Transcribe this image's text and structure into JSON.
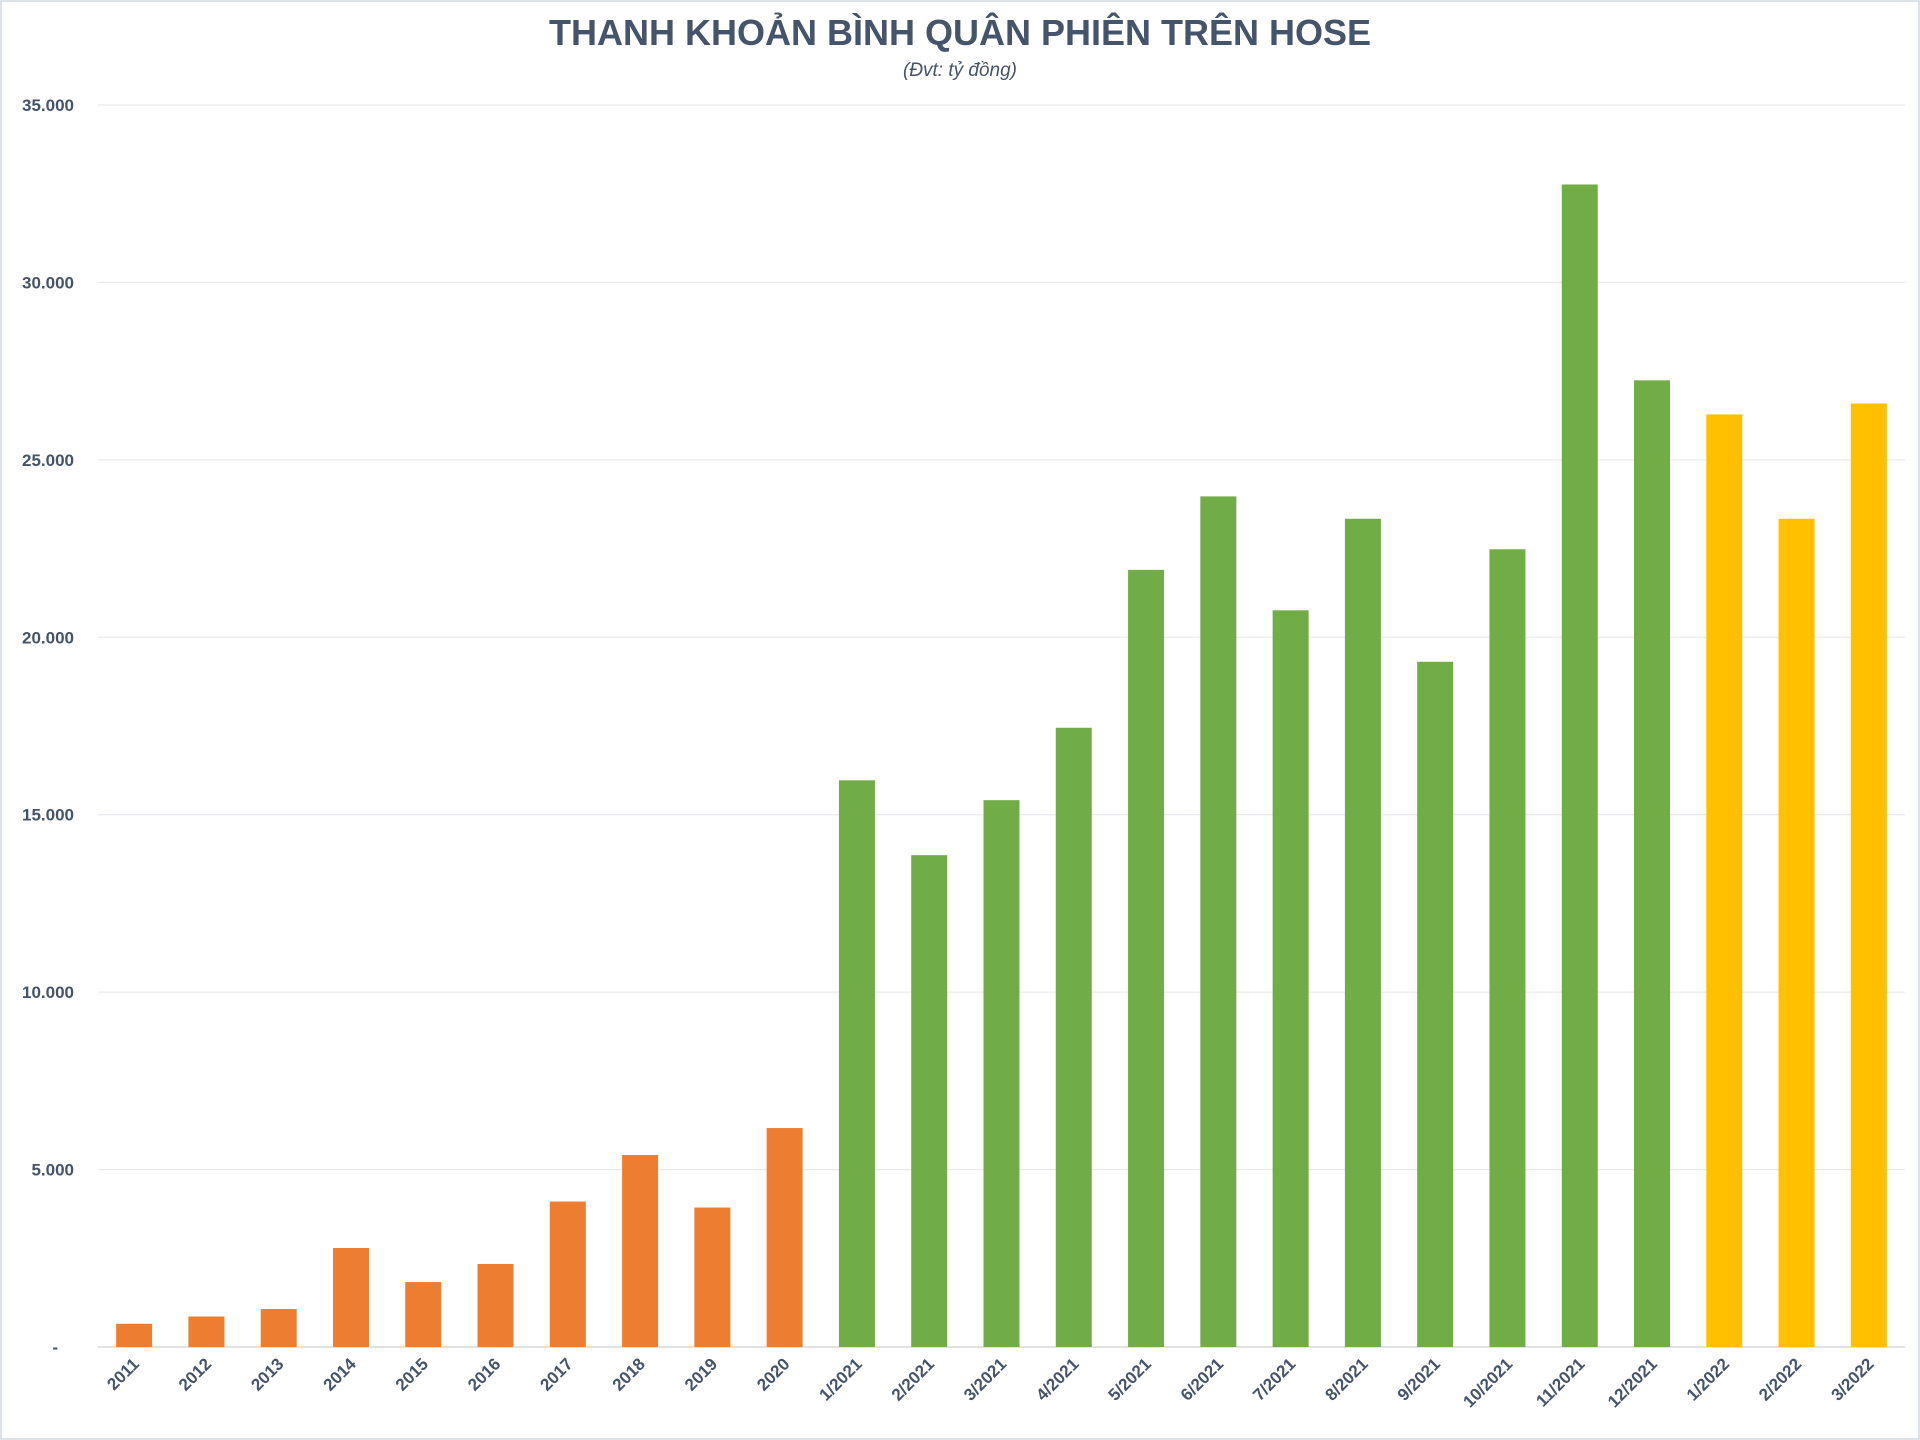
{
  "chart_data": {
    "type": "bar",
    "title": "THANH KHOẢN BÌNH QUÂN PHIÊN TRÊN HOSE",
    "subtitle": "(Đvt: tỷ đồng)",
    "xlabel": "",
    "ylabel": "",
    "ylim": [
      0,
      35000
    ],
    "yticks": [
      0,
      5000,
      10000,
      15000,
      20000,
      25000,
      30000,
      35000
    ],
    "ytick_labels": [
      "-",
      "5.000",
      "10.000",
      "15.000",
      "20.000",
      "25.000",
      "30.000",
      "35.000"
    ],
    "grid": true,
    "legend": "none",
    "categories": [
      "2011",
      "2012",
      "2013",
      "2014",
      "2015",
      "2016",
      "2017",
      "2018",
      "2019",
      "2020",
      "1/2021",
      "2/2021",
      "3/2021",
      "4/2021",
      "5/2021",
      "6/2021",
      "7/2021",
      "8/2021",
      "9/2021",
      "10/2021",
      "11/2021",
      "12/2021",
      "1/2022",
      "2/2022",
      "3/2022"
    ],
    "values": [
      655,
      860,
      1070,
      2790,
      1830,
      2340,
      4100,
      5410,
      3930,
      6170,
      15970,
      13860,
      15410,
      17450,
      21900,
      23970,
      20760,
      23340,
      19310,
      22480,
      32760,
      27240,
      26280,
      23340,
      26590
    ],
    "group_colors": {
      "yearly": "#ed7d31",
      "2021": "#70ad47",
      "2022": "#ffc000"
    },
    "bar_groups": [
      "yearly",
      "yearly",
      "yearly",
      "yearly",
      "yearly",
      "yearly",
      "yearly",
      "yearly",
      "yearly",
      "yearly",
      "2021",
      "2021",
      "2021",
      "2021",
      "2021",
      "2021",
      "2021",
      "2021",
      "2021",
      "2021",
      "2021",
      "2021",
      "2022",
      "2022",
      "2022"
    ]
  }
}
